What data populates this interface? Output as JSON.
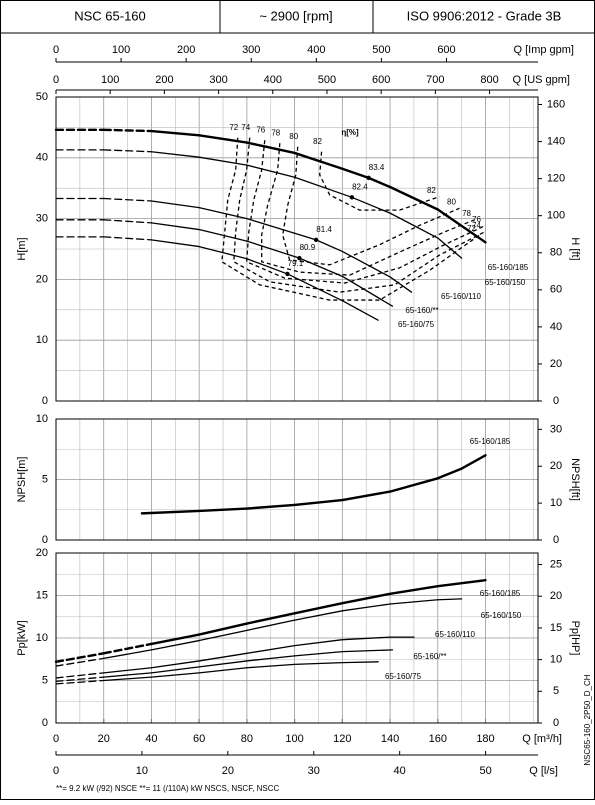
{
  "header": {
    "model": "NSC 65-160",
    "speed": "~ 2900 [rpm]",
    "standard": "ISO 9906:2012 - Grade 3B"
  },
  "flow_axes": {
    "imp_gpm": {
      "label": "Q [Imp gpm]",
      "lim": [
        0,
        740.6
      ],
      "ticks": [
        0,
        100,
        200,
        300,
        400,
        500,
        600
      ]
    },
    "us_gpm": {
      "label": "Q [US gpm]",
      "lim": [
        0,
        889.4
      ],
      "ticks": [
        0,
        100,
        200,
        300,
        400,
        500,
        600,
        700,
        800
      ]
    },
    "m3h": {
      "label": "Q [m³/h]",
      "lim": [
        0,
        202
      ],
      "ticks": [
        0,
        20,
        40,
        60,
        80,
        100,
        120,
        140,
        160,
        180
      ]
    },
    "ls": {
      "label": "Q [l/s]",
      "lim": [
        0,
        56.1
      ],
      "ticks": [
        0,
        10,
        20,
        30,
        40,
        50
      ]
    }
  },
  "chart_data": [
    {
      "type": "line",
      "ylabel": "H[m]",
      "y2label": "H [ft]",
      "ylim": [
        0,
        50
      ],
      "yticks": [
        0,
        10,
        20,
        30,
        40,
        50
      ],
      "y2lim": [
        0,
        164.04
      ],
      "y2ticks": [
        0,
        20,
        40,
        60,
        80,
        100,
        120,
        140,
        160
      ],
      "grid": true,
      "color": "#000000",
      "efficiency_label": "η[%]",
      "series": [
        {
          "name": "65-160/185",
          "x": [
            0,
            20,
            40,
            60,
            80,
            100,
            120,
            131,
            140,
            160,
            180
          ],
          "values": [
            44.6,
            44.6,
            44.4,
            43.7,
            42.5,
            40.8,
            38.2,
            36.7,
            35.2,
            31.5,
            26.1
          ],
          "styles": [
            "dashed",
            "dashed",
            "solid",
            "solid",
            "solid",
            "solid",
            "solid",
            "solid",
            "solid",
            "solid"
          ],
          "bep_q": 131,
          "bep_h": 36.7,
          "bep_eta": 83.4
        },
        {
          "name": "65-160/150",
          "x": [
            0,
            20,
            40,
            60,
            80,
            100,
            124,
            140,
            160,
            170
          ],
          "values": [
            41.3,
            41.3,
            41.0,
            40.1,
            38.8,
            36.8,
            33.5,
            30.9,
            26.8,
            23.5
          ],
          "styles": [
            "dashed",
            "dashed",
            "solid",
            "solid",
            "solid",
            "solid",
            "solid",
            "solid",
            "solid"
          ],
          "bep_q": 124,
          "bep_h": 33.5,
          "bep_eta": 82.4
        },
        {
          "name": "65-160/110",
          "x": [
            0,
            20,
            40,
            60,
            80,
            100,
            109,
            120,
            140,
            149
          ],
          "values": [
            33.3,
            33.3,
            32.9,
            31.8,
            30.0,
            27.6,
            26.5,
            24.6,
            20.4,
            17.9
          ],
          "styles": [
            "dashed",
            "dashed",
            "solid",
            "solid",
            "solid",
            "solid",
            "solid",
            "solid",
            "solid"
          ],
          "bep_q": 109,
          "bep_h": 26.5,
          "bep_eta": 81.4
        },
        {
          "name": "65-160/**",
          "x": [
            0,
            20,
            40,
            60,
            80,
            102,
            120,
            141
          ],
          "values": [
            29.8,
            29.8,
            29.3,
            28.2,
            26.3,
            23.5,
            20.5,
            15.6
          ],
          "styles": [
            "dashed",
            "dashed",
            "solid",
            "solid",
            "solid",
            "solid",
            "solid"
          ],
          "bep_q": 102,
          "bep_h": 23.5,
          "bep_eta": 80.9
        },
        {
          "name": "65-160/75",
          "x": [
            0,
            20,
            40,
            60,
            80,
            97,
            120,
            135
          ],
          "values": [
            27.0,
            27.0,
            26.5,
            25.4,
            23.4,
            20.9,
            16.5,
            13.3
          ],
          "styles": [
            "dashed",
            "dashed",
            "solid",
            "solid",
            "solid",
            "solid",
            "solid"
          ],
          "bep_q": 97,
          "bep_h": 20.9,
          "bep_eta": 79.1
        }
      ],
      "efficiency_contours": [
        {
          "name": "72",
          "x": [
            76.2,
            75.3,
            72.0,
            70.7,
            69.5,
            85.4,
            114.7,
            135.6,
            156.6,
            177.5
          ],
          "values": [
            43.3,
            38.0,
            33.1,
            27.8,
            22.9,
            19.1,
            16.6,
            16.6,
            21.5,
            27.3
          ]
        },
        {
          "name": "74",
          "x": [
            81.2,
            79.9,
            77.0,
            75.3,
            74.5,
            89.6,
            118.9,
            141.9,
            160.7,
            179.6
          ],
          "values": [
            43.3,
            38.0,
            33.1,
            27.8,
            22.9,
            19.6,
            17.9,
            19.1,
            24.0,
            27.8
          ]
        },
        {
          "name": "76",
          "x": [
            87.5,
            86.2,
            82.9,
            80.8,
            79.9,
            95.9,
            121.0,
            144.0,
            162.8,
            179.6
          ],
          "values": [
            42.9,
            38.0,
            33.1,
            27.8,
            22.9,
            20.2,
            19.4,
            21.9,
            25.7,
            28.8
          ]
        },
        {
          "name": "78",
          "x": [
            93.8,
            92.9,
            88.7,
            86.2,
            86.2,
            102.1,
            123.1,
            144.0,
            162.8,
            175.4
          ],
          "values": [
            42.4,
            38.0,
            32.2,
            27.3,
            22.9,
            21.2,
            20.7,
            24.5,
            27.8,
            29.8
          ]
        },
        {
          "name": "80",
          "x": [
            101.3,
            100.5,
            97.1,
            95.0,
            97.9,
            114.7,
            135.6,
            152.4,
            169.1
          ],
          "values": [
            41.8,
            37.2,
            32.2,
            27.3,
            23.2,
            22.4,
            25.7,
            28.9,
            31.7
          ]
        },
        {
          "name": "82",
          "x": [
            111.3,
            110.5,
            114.7,
            127.2,
            144.0,
            160.7
          ],
          "values": [
            41.0,
            37.2,
            33.9,
            31.4,
            31.4,
            33.6
          ]
        }
      ]
    },
    {
      "type": "line",
      "ylabel": "NPSH[m]",
      "y2label": "NPSH[ft]",
      "ylim": [
        0,
        10
      ],
      "yticks": [
        0,
        5,
        10
      ],
      "y2lim": [
        0,
        32.81
      ],
      "y2ticks": [
        0,
        10,
        20,
        30
      ],
      "grid": true,
      "color": "#000000",
      "series": [
        {
          "name": "65-160/185",
          "x": [
            36,
            60,
            80,
            100,
            120,
            140,
            160,
            170,
            180
          ],
          "values": [
            2.2,
            2.4,
            2.6,
            2.9,
            3.3,
            4.0,
            5.1,
            5.9,
            7.0
          ]
        }
      ]
    },
    {
      "type": "line",
      "ylabel": "Pp[kW]",
      "y2label": "Pp[HP]",
      "ylim": [
        0,
        20
      ],
      "yticks": [
        0,
        5,
        10,
        15,
        20
      ],
      "y2lim": [
        0,
        26.82
      ],
      "y2ticks": [
        0,
        5,
        10,
        15,
        20,
        25
      ],
      "grid": true,
      "color": "#000000",
      "series": [
        {
          "name": "65-160/185",
          "x": [
            0,
            20,
            40,
            60,
            80,
            100,
            120,
            140,
            160,
            180
          ],
          "values": [
            7.2,
            8.2,
            9.3,
            10.4,
            11.7,
            12.9,
            14.1,
            15.2,
            16.1,
            16.8
          ],
          "styles": [
            "dashed",
            "dashed",
            "solid",
            "solid",
            "solid",
            "solid",
            "solid",
            "solid",
            "solid"
          ]
        },
        {
          "name": "65-160/150",
          "x": [
            0,
            20,
            40,
            60,
            80,
            100,
            120,
            140,
            160,
            170
          ],
          "values": [
            6.7,
            7.6,
            8.6,
            9.7,
            10.9,
            12.1,
            13.2,
            14.0,
            14.5,
            14.6
          ],
          "styles": [
            "dashed",
            "solid",
            "solid",
            "solid",
            "solid",
            "solid",
            "solid",
            "solid",
            "solid"
          ]
        },
        {
          "name": "65-160/110",
          "x": [
            0,
            20,
            40,
            60,
            80,
            100,
            120,
            140,
            150
          ],
          "values": [
            5.3,
            5.9,
            6.5,
            7.3,
            8.2,
            9.1,
            9.8,
            10.1,
            10.1
          ],
          "styles": [
            "dashed",
            "solid",
            "solid",
            "solid",
            "solid",
            "solid",
            "solid",
            "solid"
          ]
        },
        {
          "name": "65-160/**",
          "x": [
            0,
            20,
            40,
            60,
            80,
            100,
            120,
            141
          ],
          "values": [
            4.9,
            5.4,
            5.9,
            6.6,
            7.3,
            7.9,
            8.4,
            8.6
          ],
          "styles": [
            "dashed",
            "solid",
            "solid",
            "solid",
            "solid",
            "solid",
            "solid"
          ]
        },
        {
          "name": "65-160/75",
          "x": [
            0,
            20,
            40,
            60,
            80,
            100,
            120,
            135
          ],
          "values": [
            4.6,
            5.0,
            5.4,
            5.9,
            6.5,
            6.9,
            7.1,
            7.2
          ],
          "styles": [
            "dashed",
            "solid",
            "solid",
            "solid",
            "solid",
            "solid",
            "solid"
          ]
        }
      ]
    }
  ],
  "footnote": "**= 9.2 kW (/92) NSCE   **= 11 (/110A) kW NSCS, NSCF, NSCC",
  "drawing_code": "NSC65-160_2P50_D_CH"
}
